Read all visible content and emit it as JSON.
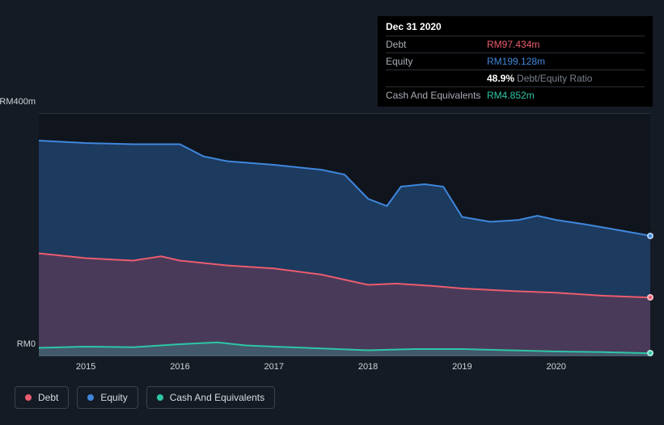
{
  "tooltip": {
    "date": "Dec 31 2020",
    "rows": [
      {
        "label": "Debt",
        "value": "RM97.434m",
        "color": "#eb5c6e"
      },
      {
        "label": "Equity",
        "value": "RM199.128m",
        "color": "#3f87dd"
      },
      {
        "label": "",
        "ratio_pct": "48.9%",
        "ratio_label": "Debt/Equity Ratio"
      },
      {
        "label": "Cash And Equivalents",
        "value": "RM4.852m",
        "color": "#2dc6a6"
      }
    ]
  },
  "chart": {
    "type": "area",
    "background_color": "#10151d",
    "grid_color": "#2a3240",
    "ylim": [
      0,
      400
    ],
    "y_ticks": [
      {
        "v": 400,
        "label": "RM400m"
      },
      {
        "v": 0,
        "label": "RM0"
      }
    ],
    "x_years": [
      2015,
      2016,
      2017,
      2018,
      2019,
      2020
    ],
    "x_domain": [
      2014.5,
      2021.0
    ],
    "series": [
      {
        "name": "Equity",
        "color": "#3f87dd",
        "fill": "rgba(40,90,150,0.55)",
        "line_width": 2,
        "points": [
          [
            2014.5,
            356
          ],
          [
            2015.0,
            352
          ],
          [
            2015.5,
            350
          ],
          [
            2016.0,
            350
          ],
          [
            2016.25,
            330
          ],
          [
            2016.5,
            322
          ],
          [
            2017.0,
            316
          ],
          [
            2017.5,
            308
          ],
          [
            2017.75,
            300
          ],
          [
            2018.0,
            260
          ],
          [
            2018.2,
            248
          ],
          [
            2018.35,
            280
          ],
          [
            2018.6,
            284
          ],
          [
            2018.8,
            280
          ],
          [
            2019.0,
            230
          ],
          [
            2019.3,
            222
          ],
          [
            2019.6,
            225
          ],
          [
            2019.8,
            232
          ],
          [
            2020.0,
            225
          ],
          [
            2020.3,
            218
          ],
          [
            2020.6,
            210
          ],
          [
            2021.0,
            199
          ]
        ]
      },
      {
        "name": "Debt",
        "color": "#eb5c6e",
        "fill": "rgba(170,60,80,0.32)",
        "line_width": 2,
        "points": [
          [
            2014.5,
            170
          ],
          [
            2015.0,
            162
          ],
          [
            2015.5,
            158
          ],
          [
            2015.8,
            165
          ],
          [
            2016.0,
            158
          ],
          [
            2016.5,
            150
          ],
          [
            2017.0,
            145
          ],
          [
            2017.5,
            135
          ],
          [
            2018.0,
            118
          ],
          [
            2018.3,
            120
          ],
          [
            2018.7,
            116
          ],
          [
            2019.0,
            112
          ],
          [
            2019.5,
            108
          ],
          [
            2020.0,
            105
          ],
          [
            2020.5,
            100
          ],
          [
            2021.0,
            97
          ]
        ]
      },
      {
        "name": "Cash And Equivalents",
        "color": "#2dc6a6",
        "fill": "rgba(45,198,166,0.22)",
        "line_width": 2,
        "points": [
          [
            2014.5,
            14
          ],
          [
            2015.0,
            16
          ],
          [
            2015.5,
            15
          ],
          [
            2016.0,
            20
          ],
          [
            2016.4,
            23
          ],
          [
            2016.7,
            18
          ],
          [
            2017.0,
            16
          ],
          [
            2017.5,
            13
          ],
          [
            2018.0,
            10
          ],
          [
            2018.5,
            12
          ],
          [
            2019.0,
            12
          ],
          [
            2019.5,
            10
          ],
          [
            2020.0,
            8
          ],
          [
            2020.5,
            7
          ],
          [
            2021.0,
            5
          ]
        ]
      }
    ],
    "legend": [
      {
        "label": "Debt",
        "color": "#eb5c6e"
      },
      {
        "label": "Equity",
        "color": "#3f87dd"
      },
      {
        "label": "Cash And Equivalents",
        "color": "#2dc6a6"
      }
    ]
  }
}
